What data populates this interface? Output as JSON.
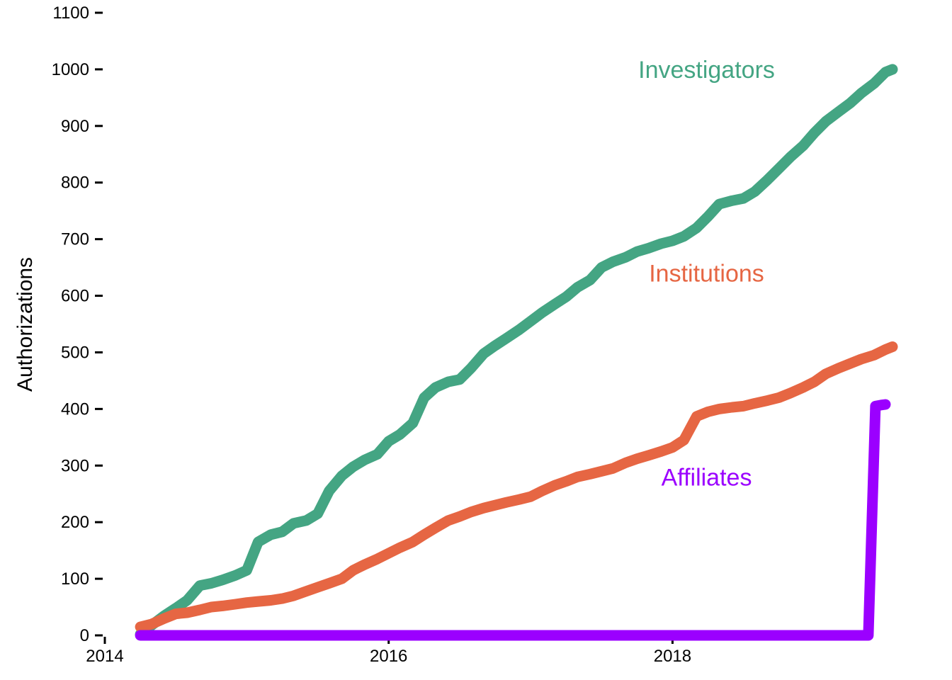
{
  "chart_data": {
    "type": "line",
    "title": "",
    "xlabel": "",
    "ylabel": "Authorizations",
    "xlim": [
      2014,
      2019.6
    ],
    "ylim": [
      0,
      1100
    ],
    "x_ticks": [
      2014,
      2016,
      2018
    ],
    "x_tick_labels": [
      "2014",
      "2016",
      "2018"
    ],
    "y_ticks": [
      0,
      100,
      200,
      300,
      400,
      500,
      600,
      700,
      800,
      900,
      1000,
      1100
    ],
    "y_tick_labels": [
      "0",
      "100",
      "200",
      "300",
      "400",
      "500",
      "600",
      "700",
      "800",
      "900",
      "1000",
      "1100"
    ],
    "grid": false,
    "legend": "none",
    "series": [
      {
        "name": "Investigators",
        "color": "#44a583",
        "x": [
          2014.25,
          2014.33,
          2014.42,
          2014.5,
          2014.58,
          2014.67,
          2014.75,
          2014.83,
          2014.92,
          2015.0,
          2015.08,
          2015.17,
          2015.25,
          2015.33,
          2015.42,
          2015.5,
          2015.58,
          2015.67,
          2015.75,
          2015.83,
          2015.92,
          2016.0,
          2016.08,
          2016.17,
          2016.25,
          2016.33,
          2016.42,
          2016.5,
          2016.58,
          2016.67,
          2016.75,
          2016.83,
          2016.92,
          2017.0,
          2017.08,
          2017.17,
          2017.25,
          2017.33,
          2017.42,
          2017.5,
          2017.58,
          2017.67,
          2017.75,
          2017.83,
          2017.92,
          2018.0,
          2018.08,
          2018.17,
          2018.25,
          2018.33,
          2018.42,
          2018.5,
          2018.58,
          2018.67,
          2018.75,
          2018.83,
          2018.92,
          2019.0,
          2019.08,
          2019.17,
          2019.25,
          2019.33,
          2019.42,
          2019.5,
          2019.55
        ],
        "values": [
          2,
          18,
          35,
          48,
          62,
          88,
          92,
          98,
          106,
          115,
          165,
          178,
          183,
          198,
          203,
          215,
          255,
          282,
          298,
          310,
          320,
          343,
          355,
          375,
          420,
          438,
          448,
          452,
          472,
          498,
          512,
          525,
          540,
          555,
          570,
          585,
          598,
          615,
          628,
          650,
          660,
          668,
          678,
          684,
          692,
          697,
          705,
          720,
          740,
          762,
          768,
          772,
          784,
          805,
          825,
          845,
          865,
          888,
          908,
          925,
          940,
          958,
          975,
          995,
          1000
        ]
      },
      {
        "name": "Institutions",
        "color": "#e66643",
        "x": [
          2014.25,
          2014.33,
          2014.42,
          2014.5,
          2014.58,
          2014.67,
          2014.75,
          2014.83,
          2014.92,
          2015.0,
          2015.08,
          2015.17,
          2015.25,
          2015.33,
          2015.42,
          2015.5,
          2015.58,
          2015.67,
          2015.75,
          2015.83,
          2015.92,
          2016.0,
          2016.08,
          2016.17,
          2016.25,
          2016.33,
          2016.42,
          2016.5,
          2016.58,
          2016.67,
          2016.75,
          2016.83,
          2016.92,
          2017.0,
          2017.08,
          2017.17,
          2017.25,
          2017.33,
          2017.42,
          2017.5,
          2017.58,
          2017.67,
          2017.75,
          2017.83,
          2017.92,
          2018.0,
          2018.08,
          2018.17,
          2018.25,
          2018.33,
          2018.42,
          2018.5,
          2018.58,
          2018.67,
          2018.75,
          2018.83,
          2018.92,
          2019.0,
          2019.08,
          2019.17,
          2019.25,
          2019.33,
          2019.42,
          2019.5,
          2019.55
        ],
        "values": [
          15,
          20,
          30,
          38,
          40,
          45,
          50,
          52,
          55,
          58,
          60,
          62,
          65,
          70,
          78,
          85,
          92,
          100,
          115,
          125,
          135,
          145,
          155,
          165,
          178,
          190,
          203,
          210,
          218,
          225,
          230,
          235,
          240,
          245,
          255,
          265,
          272,
          280,
          285,
          290,
          295,
          305,
          312,
          318,
          325,
          332,
          345,
          387,
          395,
          400,
          403,
          405,
          410,
          415,
          420,
          428,
          438,
          448,
          462,
          472,
          480,
          488,
          495,
          505,
          510
        ]
      },
      {
        "name": "Affiliates",
        "color": "#9b00ff",
        "x": [
          2014.25,
          2019.38,
          2019.43,
          2019.47,
          2019.5
        ],
        "values": [
          0,
          0,
          405,
          407,
          408
        ]
      }
    ],
    "annotations": [
      {
        "text": "Investigators",
        "series": "Investigators",
        "x": 2018.24,
        "y": 1000
      },
      {
        "text": "Institutions",
        "series": "Institutions",
        "x": 2018.24,
        "y": 640
      },
      {
        "text": "Affiliates",
        "series": "Affiliates",
        "x": 2018.24,
        "y": 280
      }
    ]
  }
}
